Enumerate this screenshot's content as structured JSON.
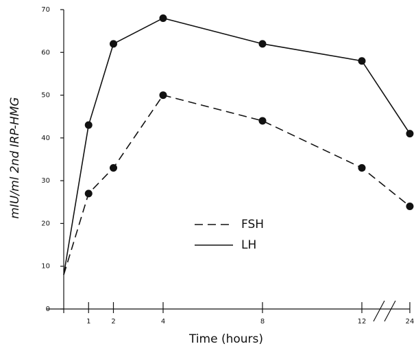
{
  "chart_data": {
    "type": "line",
    "x_label": "Time (hours)",
    "y_label": "mIU/ml  2nd IRP-HMG",
    "x": [
      0,
      1,
      2,
      4,
      8,
      12,
      24
    ],
    "series": [
      {
        "name": "FSH",
        "color": "#111111",
        "dash": "dashed",
        "values": [
          8,
          27,
          33,
          50,
          44,
          33,
          24
        ]
      },
      {
        "name": "LH",
        "color": "#111111",
        "dash": "solid",
        "values": [
          8,
          43,
          62,
          68,
          62,
          58,
          41
        ]
      }
    ],
    "xlim": [
      0,
      24
    ],
    "xticks": [
      1,
      2,
      4,
      8,
      12,
      24
    ],
    "ylim": [
      0,
      70
    ],
    "yticks": [
      0,
      10,
      20,
      30,
      40,
      50,
      60,
      70
    ]
  }
}
